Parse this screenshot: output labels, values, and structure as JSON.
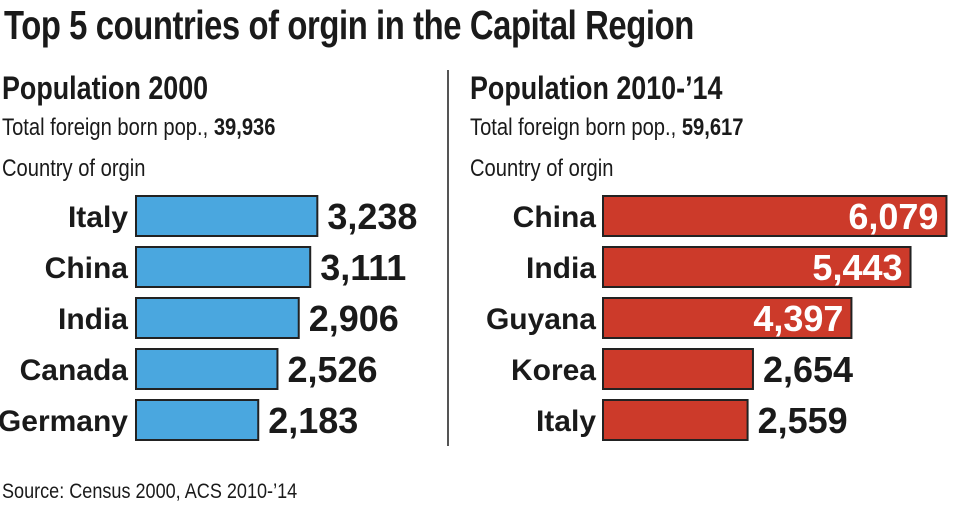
{
  "title": "Top 5 countries of orgin in the Capital Region",
  "source": "Source: Census 2000, ACS 2010-’14",
  "colors": {
    "left_bar": "#4aa7df",
    "right_bar": "#cc3a2a",
    "text": "#1a1a1a"
  },
  "chart_data": [
    {
      "type": "bar",
      "orientation": "horizontal",
      "title": "Population 2000",
      "total_label": "Total foreign born pop., ",
      "total_value": "39,936",
      "category_label": "Country of orgin",
      "categories": [
        "Italy",
        "China",
        "India",
        "Canada",
        "Germany"
      ],
      "values": [
        3238,
        3111,
        2906,
        2526,
        2183
      ],
      "value_labels": [
        "3,238",
        "3,111",
        "2,906",
        "2,526",
        "2,183"
      ],
      "color": "#4aa7df"
    },
    {
      "type": "bar",
      "orientation": "horizontal",
      "title": "Population 2010-’14",
      "total_label": "Total foreign born pop., ",
      "total_value": "59,617",
      "category_label": "Country of orgin",
      "categories": [
        "China",
        "India",
        "Guyana",
        "Korea",
        "Italy"
      ],
      "values": [
        6079,
        5443,
        4397,
        2654,
        2559
      ],
      "value_labels": [
        "6,079",
        "5,443",
        "4,397",
        "2,654",
        "2,559"
      ],
      "color": "#cc3a2a"
    }
  ]
}
